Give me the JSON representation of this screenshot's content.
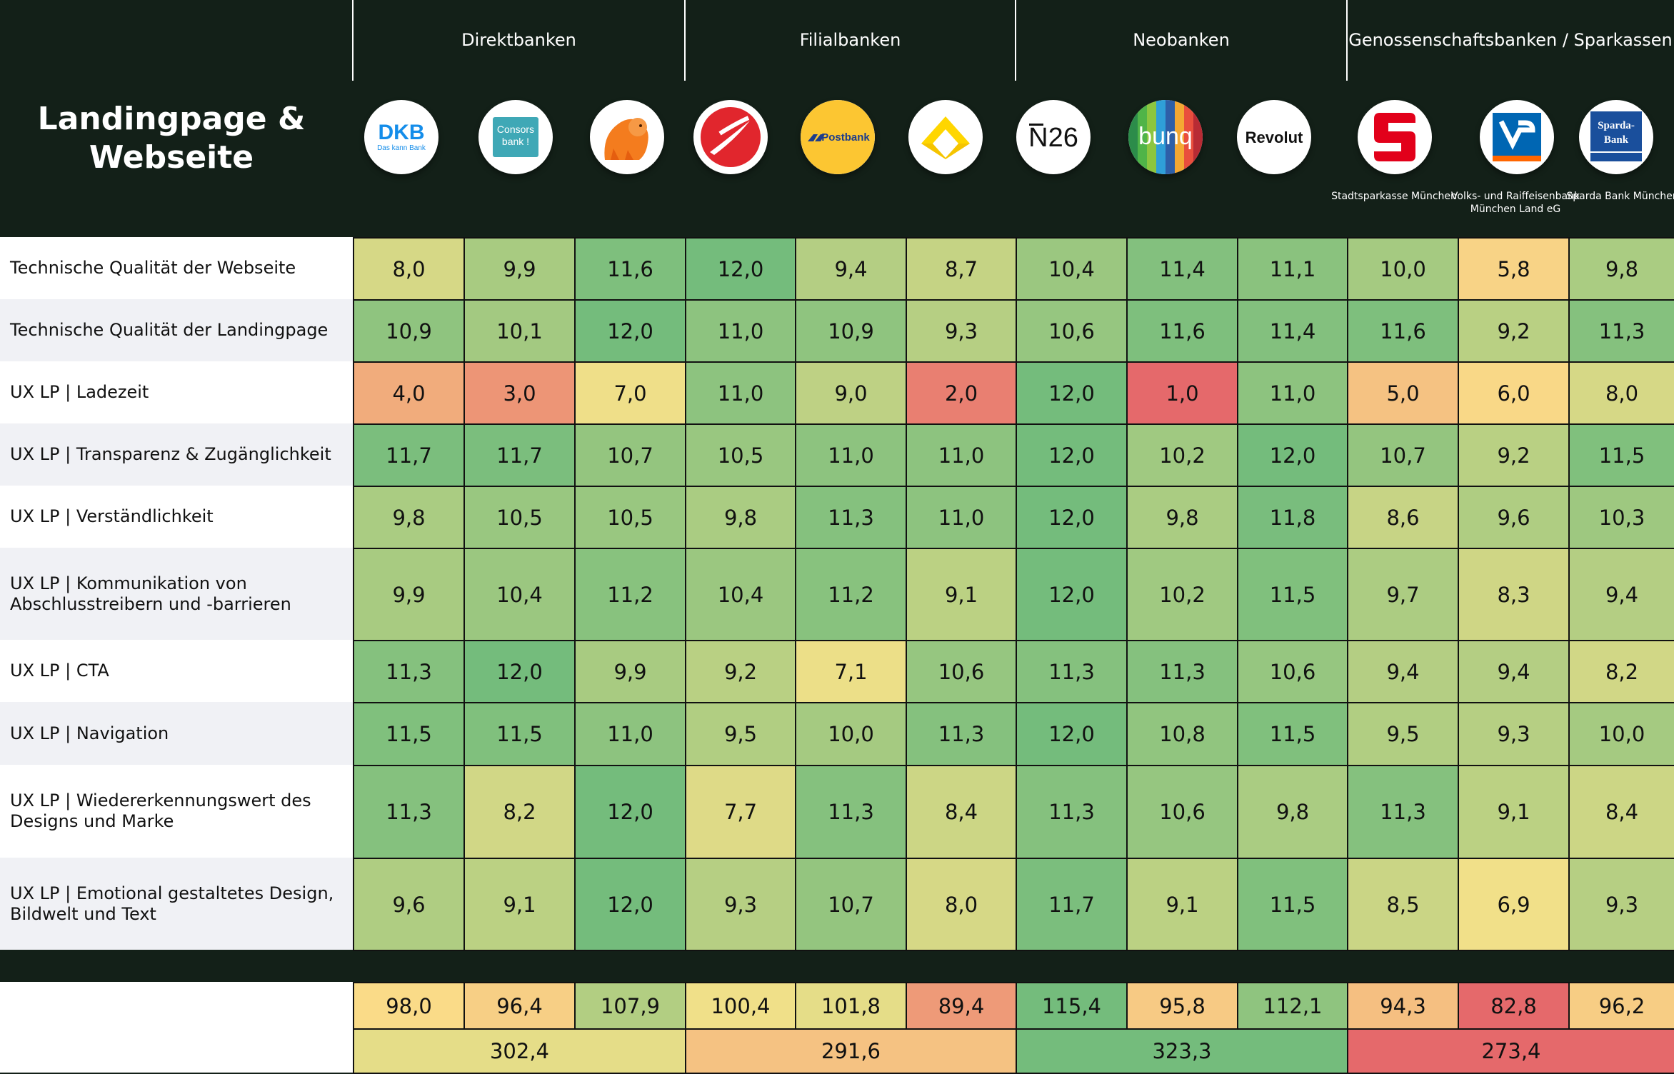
{
  "title": "Landingpage & Webseite",
  "groups": [
    "Direktbanken",
    "Filialbanken",
    "Neobanken",
    "Genossenschaftsbanken / Sparkassen"
  ],
  "banks": [
    {
      "logo": "DKB Das kann Bank",
      "subtitle": ""
    },
    {
      "logo": "Consorsbank!",
      "subtitle": ""
    },
    {
      "logo": "ING lion",
      "subtitle": ""
    },
    {
      "logo": "UniCredit",
      "subtitle": ""
    },
    {
      "logo": "Postbank",
      "subtitle": ""
    },
    {
      "logo": "Commerzbank",
      "subtitle": ""
    },
    {
      "logo": "N26",
      "subtitle": ""
    },
    {
      "logo": "bunq",
      "subtitle": ""
    },
    {
      "logo": "Revolut",
      "subtitle": ""
    },
    {
      "logo": "Sparkasse",
      "subtitle": "Stadtsparkasse München"
    },
    {
      "logo": "Volksbank",
      "subtitle": "Volks- und Raiffeisenbank München Land eG"
    },
    {
      "logo": "Sparda-Bank",
      "subtitle": "Sparda Bank München"
    }
  ],
  "chart_data": {
    "type": "heatmap",
    "title": "Landingpage & Webseite",
    "column_groups": [
      {
        "name": "Direktbanken",
        "span": 3
      },
      {
        "name": "Filialbanken",
        "span": 3
      },
      {
        "name": "Neobanken",
        "span": 3
      },
      {
        "name": "Genossenschaftsbanken / Sparkassen",
        "span": 3
      }
    ],
    "columns": [
      "DKB",
      "Consorsbank",
      "ING",
      "UniCredit",
      "Postbank",
      "Commerzbank",
      "N26",
      "bunq",
      "Revolut",
      "Stadtsparkasse München",
      "Volks- und Raiffeisenbank München Land eG",
      "Sparda Bank München"
    ],
    "rows": [
      {
        "label": "Technische Qualität der Webseite",
        "values": [
          "8,0",
          "9,9",
          "11,6",
          "12,0",
          "9,4",
          "8,7",
          "10,4",
          "11,4",
          "11,1",
          "10,0",
          "5,8",
          "9,8"
        ]
      },
      {
        "label": "Technische Qualität der Landingpage",
        "values": [
          "10,9",
          "10,1",
          "12,0",
          "11,0",
          "10,9",
          "9,3",
          "10,6",
          "11,6",
          "11,4",
          "11,6",
          "9,2",
          "11,3"
        ]
      },
      {
        "label": "UX LP | Ladezeit",
        "values": [
          "4,0",
          "3,0",
          "7,0",
          "11,0",
          "9,0",
          "2,0",
          "12,0",
          "1,0",
          "11,0",
          "5,0",
          "6,0",
          "8,0"
        ]
      },
      {
        "label": "UX LP | Transparenz & Zugänglichkeit",
        "values": [
          "11,7",
          "11,7",
          "10,7",
          "10,5",
          "11,0",
          "11,0",
          "12,0",
          "10,2",
          "12,0",
          "10,7",
          "9,2",
          "11,5"
        ]
      },
      {
        "label": "UX LP | Verständlichkeit",
        "values": [
          "9,8",
          "10,5",
          "10,5",
          "9,8",
          "11,3",
          "11,0",
          "12,0",
          "9,8",
          "11,8",
          "8,6",
          "9,6",
          "10,3"
        ]
      },
      {
        "label": "UX LP | Kommunikation von Abschlusstreibern und -barrieren",
        "values": [
          "9,9",
          "10,4",
          "11,2",
          "10,4",
          "11,2",
          "9,1",
          "12,0",
          "10,2",
          "11,5",
          "9,7",
          "8,3",
          "9,4"
        ]
      },
      {
        "label": "UX LP | CTA",
        "values": [
          "11,3",
          "12,0",
          "9,9",
          "9,2",
          "7,1",
          "10,6",
          "11,3",
          "11,3",
          "10,6",
          "9,4",
          "9,4",
          "8,2"
        ]
      },
      {
        "label": "UX LP | Navigation",
        "values": [
          "11,5",
          "11,5",
          "11,0",
          "9,5",
          "10,0",
          "11,3",
          "12,0",
          "10,8",
          "11,5",
          "9,5",
          "9,3",
          "10,0"
        ]
      },
      {
        "label": "UX LP | Wiedererkennungswert des Designs und Marke",
        "values": [
          "11,3",
          "8,2",
          "12,0",
          "7,7",
          "11,3",
          "8,4",
          "11,3",
          "10,6",
          "9,8",
          "11,3",
          "9,1",
          "8,4"
        ]
      },
      {
        "label": "UX LP | Emotional gestaltetes Design, Bildwelt und Text",
        "values": [
          "9,6",
          "9,1",
          "12,0",
          "9,3",
          "10,7",
          "8,0",
          "11,7",
          "9,1",
          "11,5",
          "8,5",
          "6,9",
          "9,3"
        ]
      }
    ],
    "totals": [
      "98,0",
      "96,4",
      "107,9",
      "100,4",
      "101,8",
      "89,4",
      "115,4",
      "95,8",
      "112,1",
      "94,3",
      "82,8",
      "96,2"
    ],
    "group_totals": [
      "302,4",
      "291,6",
      "323,3",
      "273,4"
    ],
    "scale": {
      "row_min": 1,
      "row_max": 12,
      "colors": [
        "#e5696b",
        "#fbe38a",
        "#74bc7c"
      ]
    }
  }
}
